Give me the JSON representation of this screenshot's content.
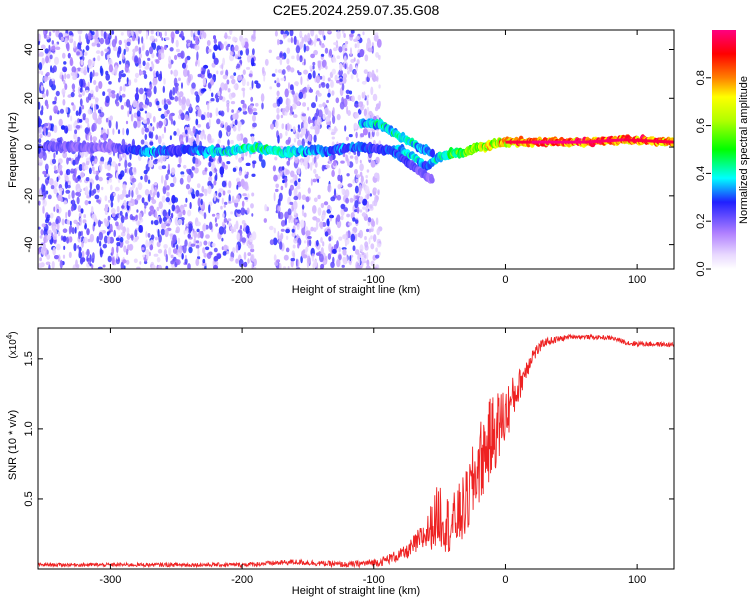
{
  "title": "C2E5.2024.259.07.35.G08",
  "colors": {
    "snr_line": "#ee2222",
    "frame": "#000000",
    "scatter": "#6a1fe0"
  },
  "chart_data": [
    {
      "type": "heatmap",
      "xlabel": "Height of straight line (km)",
      "ylabel": "Frequency (Hz)",
      "xlim": [
        -355,
        128
      ],
      "ylim": [
        -50,
        48
      ],
      "xticks": [
        -300,
        -200,
        -100,
        0,
        100
      ],
      "yticks": [
        -40,
        -20,
        0,
        20,
        40
      ],
      "colorbar": {
        "label": "Normalized spectral amplitude",
        "range": [
          0,
          1
        ],
        "ticks": [
          "0.0",
          "0.2",
          "0.4",
          "0.6",
          "0.8"
        ],
        "tick_values": [
          0,
          0.2,
          0.4,
          0.6,
          0.8
        ]
      },
      "main_trace": [
        {
          "x": -350,
          "f": 0,
          "a": 0.25
        },
        {
          "x": -300,
          "f": 0,
          "a": 0.2
        },
        {
          "x": -270,
          "f": -2,
          "a": 0.4
        },
        {
          "x": -250,
          "f": -1,
          "a": 0.3
        },
        {
          "x": -210,
          "f": -2,
          "a": 0.45
        },
        {
          "x": -190,
          "f": 0,
          "a": 0.5
        },
        {
          "x": -170,
          "f": -2,
          "a": 0.45
        },
        {
          "x": -125,
          "f": -1,
          "a": 0.35
        },
        {
          "x": -110,
          "f": 0,
          "a": 0.35
        },
        {
          "x": -95,
          "f": -1,
          "a": 0.3
        },
        {
          "x": -80,
          "f": -1,
          "a": 0.4
        },
        {
          "x": -70,
          "f": -4,
          "a": 0.45
        },
        {
          "x": -60,
          "f": -8,
          "a": 0.35
        },
        {
          "x": -50,
          "f": -4,
          "a": 0.45
        },
        {
          "x": -40,
          "f": -3,
          "a": 0.55
        },
        {
          "x": -30,
          "f": -2,
          "a": 0.65
        },
        {
          "x": -20,
          "f": 0,
          "a": 0.7
        },
        {
          "x": -10,
          "f": 1,
          "a": 0.75
        },
        {
          "x": 0,
          "f": 2,
          "a": 0.85
        },
        {
          "x": 20,
          "f": 2,
          "a": 0.95
        },
        {
          "x": 60,
          "f": 2,
          "a": 1.0
        },
        {
          "x": 90,
          "f": 3,
          "a": 0.98
        },
        {
          "x": 128,
          "f": 2,
          "a": 0.95
        }
      ],
      "upper_branch": [
        {
          "x": -110,
          "f": 10,
          "a": 0.4
        },
        {
          "x": -95,
          "f": 9,
          "a": 0.45
        },
        {
          "x": -85,
          "f": 6,
          "a": 0.45
        },
        {
          "x": -75,
          "f": 3,
          "a": 0.45
        },
        {
          "x": -65,
          "f": 0,
          "a": 0.4
        },
        {
          "x": -55,
          "f": -3,
          "a": 0.35
        }
      ],
      "lower_branch": [
        {
          "x": -85,
          "f": -2,
          "a": 0.35
        },
        {
          "x": -75,
          "f": -6,
          "a": 0.3
        },
        {
          "x": -65,
          "f": -10,
          "a": 0.25
        },
        {
          "x": -55,
          "f": -14,
          "a": 0.2
        }
      ]
    },
    {
      "type": "line",
      "xlabel": "Height of straight line (km)",
      "ylabel": "SNR (10 * v/v)",
      "scale_label": "(x10",
      "scale_exponent": "4",
      "xlim": [
        -355,
        128
      ],
      "ylim": [
        0,
        1.72
      ],
      "xticks": [
        -300,
        -200,
        -100,
        0,
        100
      ],
      "yticks": [
        0.5,
        1.0,
        1.5
      ],
      "ytick_labels": [
        "0.5",
        "1.0",
        "1.5"
      ],
      "envelope": [
        {
          "x": -355,
          "mean": 0.03,
          "noise": 0.012
        },
        {
          "x": -200,
          "mean": 0.03,
          "noise": 0.015
        },
        {
          "x": -160,
          "mean": 0.05,
          "noise": 0.02
        },
        {
          "x": -120,
          "mean": 0.03,
          "noise": 0.02
        },
        {
          "x": -95,
          "mean": 0.05,
          "noise": 0.03
        },
        {
          "x": -75,
          "mean": 0.12,
          "noise": 0.05
        },
        {
          "x": -60,
          "mean": 0.25,
          "noise": 0.12
        },
        {
          "x": -50,
          "mean": 0.4,
          "noise": 0.25
        },
        {
          "x": -42,
          "mean": 0.3,
          "noise": 0.2
        },
        {
          "x": -30,
          "mean": 0.45,
          "noise": 0.25
        },
        {
          "x": -20,
          "mean": 0.75,
          "noise": 0.3
        },
        {
          "x": -10,
          "mean": 0.95,
          "noise": 0.3
        },
        {
          "x": 0,
          "mean": 1.1,
          "noise": 0.22
        },
        {
          "x": 10,
          "mean": 1.3,
          "noise": 0.12
        },
        {
          "x": 20,
          "mean": 1.52,
          "noise": 0.06
        },
        {
          "x": 30,
          "mean": 1.62,
          "noise": 0.03
        },
        {
          "x": 50,
          "mean": 1.66,
          "noise": 0.015
        },
        {
          "x": 80,
          "mean": 1.65,
          "noise": 0.015
        },
        {
          "x": 95,
          "mean": 1.61,
          "noise": 0.02
        },
        {
          "x": 128,
          "mean": 1.6,
          "noise": 0.015
        }
      ]
    }
  ]
}
